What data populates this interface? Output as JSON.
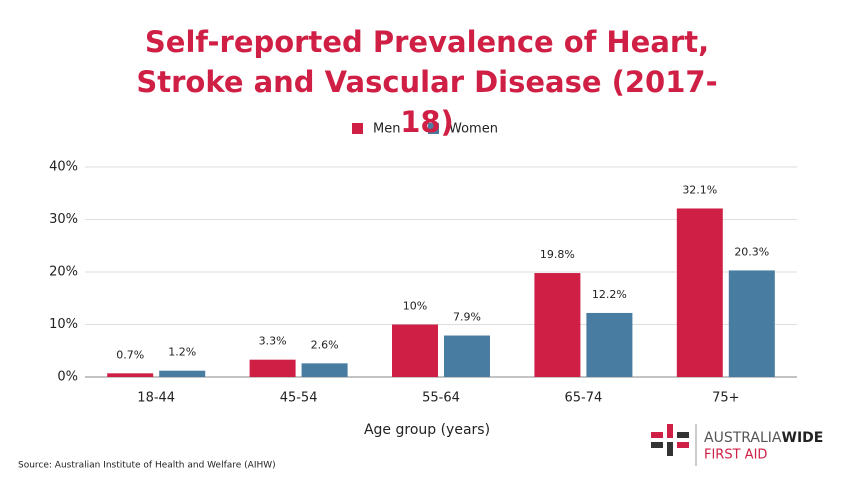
{
  "chart_data": {
    "type": "bar",
    "title": "Self-reported Prevalence of Heart, Stroke and Vascular Disease (2017-18)",
    "categories": [
      "18-44",
      "45-54",
      "55-64",
      "65-74",
      "75+"
    ],
    "series": [
      {
        "name": "Men",
        "color": "#d01f45",
        "values": [
          0.7,
          3.3,
          10,
          19.8,
          32.1
        ],
        "value_labels": [
          "0.7%",
          "3.3%",
          "10%",
          "19.8%",
          "32.1%"
        ]
      },
      {
        "name": "Women",
        "color": "#487ca0",
        "values": [
          1.2,
          2.6,
          7.9,
          12.2,
          20.3
        ],
        "value_labels": [
          "1.2%",
          "2.6%",
          "7.9%",
          "12.2%",
          "20.3%"
        ]
      }
    ],
    "ylim": [
      0,
      40
    ],
    "yticks": [
      {
        "value": 0,
        "label": "0%"
      },
      {
        "value": 10,
        "label": "10%"
      },
      {
        "value": 20,
        "label": "20%"
      },
      {
        "value": 30,
        "label": "30%"
      },
      {
        "value": 40,
        "label": "40%"
      }
    ],
    "xlabel": "Age group (years)",
    "grid": true,
    "legend": "top",
    "source": "Source: Australian Institute of Health and Welfare (AIHW)"
  },
  "logo": {
    "line1_a": "AUSTRALIA",
    "line1_b": "WIDE",
    "line2": "FIRST AID"
  }
}
